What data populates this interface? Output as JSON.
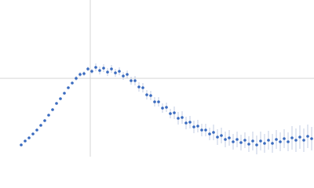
{
  "chart_data": {
    "type": "scatter",
    "x": [
      0.27,
      0.32,
      0.37,
      0.42,
      0.47,
      0.52,
      0.57,
      0.62,
      0.67,
      0.72,
      0.77,
      0.82,
      0.87,
      0.92,
      0.97,
      1.02,
      1.07,
      1.12,
      1.17,
      1.22,
      1.27,
      1.32,
      1.37,
      1.42,
      1.47,
      1.52,
      1.57,
      1.62,
      1.67,
      1.72,
      1.77,
      1.82,
      1.87,
      1.92,
      1.97,
      2.02,
      2.07,
      2.12,
      2.17,
      2.22,
      2.27,
      2.32,
      2.37,
      2.42,
      2.47,
      2.52,
      2.57,
      2.62,
      2.67,
      2.72,
      2.77,
      2.82,
      2.87,
      2.92,
      2.97,
      3.02,
      3.07,
      3.12,
      3.17,
      3.22,
      3.27,
      3.32,
      3.37,
      3.42,
      3.47,
      3.52,
      3.57,
      3.62,
      3.67,
      3.72,
      3.77,
      3.82,
      3.87,
      3.92,
      3.97
    ],
    "series": [
      {
        "color": "#3a6bbf",
        "error_color": "#b4c0dc",
        "values": [
          0.15,
          0.2,
          0.24,
          0.29,
          0.34,
          0.4,
          0.46,
          0.53,
          0.6,
          0.68,
          0.74,
          0.81,
          0.88,
          0.94,
          1.0,
          1.05,
          1.06,
          1.12,
          1.09,
          1.14,
          1.1,
          1.13,
          1.08,
          1.12,
          1.07,
          1.09,
          1.03,
          1.05,
          0.97,
          0.97,
          0.89,
          0.88,
          0.79,
          0.78,
          0.7,
          0.7,
          0.62,
          0.63,
          0.55,
          0.56,
          0.49,
          0.5,
          0.43,
          0.44,
          0.38,
          0.39,
          0.34,
          0.34,
          0.29,
          0.31,
          0.25,
          0.27,
          0.22,
          0.24,
          0.19,
          0.22,
          0.18,
          0.21,
          0.16,
          0.2,
          0.15,
          0.2,
          0.17,
          0.21,
          0.17,
          0.22,
          0.19,
          0.23,
          0.19,
          0.24,
          0.21,
          0.25,
          0.21,
          0.26,
          0.23
        ],
        "errors": [
          0.01,
          0.01,
          0.01,
          0.01,
          0.01,
          0.01,
          0.01,
          0.01,
          0.01,
          0.01,
          0.01,
          0.01,
          0.01,
          0.01,
          0.03,
          0.03,
          0.03,
          0.03,
          0.03,
          0.05,
          0.05,
          0.05,
          0.05,
          0.05,
          0.05,
          0.05,
          0.05,
          0.05,
          0.05,
          0.06,
          0.06,
          0.06,
          0.06,
          0.06,
          0.06,
          0.06,
          0.06,
          0.06,
          0.06,
          0.08,
          0.08,
          0.08,
          0.08,
          0.08,
          0.08,
          0.08,
          0.08,
          0.08,
          0.08,
          0.1,
          0.1,
          0.1,
          0.1,
          0.1,
          0.1,
          0.1,
          0.1,
          0.1,
          0.1,
          0.12,
          0.12,
          0.12,
          0.12,
          0.12,
          0.12,
          0.12,
          0.12,
          0.12,
          0.12,
          0.15,
          0.15,
          0.15,
          0.15,
          0.15,
          0.15
        ]
      }
    ],
    "xlim": [
      0,
      4
    ],
    "ylim": [
      0,
      2
    ],
    "xticks": [
      1.15
    ],
    "yticks": [
      1
    ],
    "grid": true
  }
}
